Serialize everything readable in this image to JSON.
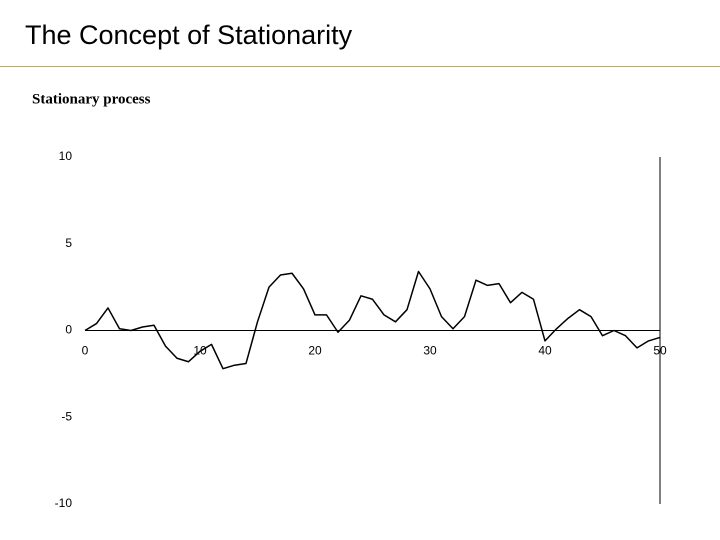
{
  "slide": {
    "title": "The Concept of Stationarity"
  },
  "chart_data": {
    "type": "line",
    "title": "Stationary process",
    "x": [
      0,
      1,
      2,
      3,
      4,
      5,
      6,
      7,
      8,
      9,
      10,
      11,
      12,
      13,
      14,
      15,
      16,
      17,
      18,
      19,
      20,
      21,
      22,
      23,
      24,
      25,
      26,
      27,
      28,
      29,
      30,
      31,
      32,
      33,
      34,
      35,
      36,
      37,
      38,
      39,
      40,
      41,
      42,
      43,
      44,
      45,
      46,
      47,
      48,
      49,
      50
    ],
    "series": [
      {
        "color": "#000000",
        "values": [
          0,
          0.4,
          1.3,
          0.1,
          0,
          0.2,
          0.3,
          -0.9,
          -1.6,
          -1.8,
          -1.2,
          -0.8,
          -2.2,
          -2.0,
          -1.9,
          0.5,
          2.5,
          3.2,
          3.3,
          2.4,
          0.9,
          0.9,
          -0.1,
          0.6,
          2.0,
          1.8,
          0.9,
          0.5,
          1.2,
          3.4,
          2.4,
          0.8,
          0.1,
          0.8,
          2.9,
          2.6,
          2.7,
          1.6,
          2.2,
          1.8,
          -0.6,
          0.1,
          0.7,
          1.2,
          0.8,
          -0.3,
          0,
          -0.3,
          -1.0,
          -0.6,
          -0.4
        ]
      }
    ],
    "xlim": [
      0,
      50
    ],
    "xticks": [
      0,
      10,
      20,
      30,
      40,
      50
    ],
    "ylim": [
      -10,
      10
    ],
    "yticks": [
      10,
      5,
      0,
      -5,
      -10
    ]
  }
}
